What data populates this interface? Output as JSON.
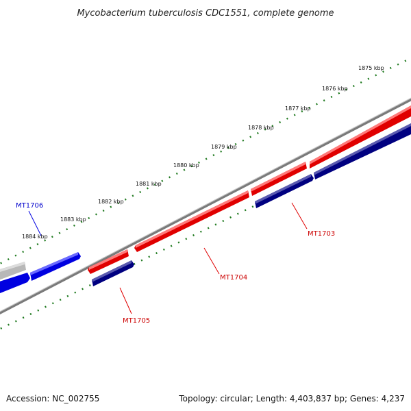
{
  "title": "Mycobacterium tuberculosis CDC1551, complete genome",
  "accession": "Accession: NC_002755",
  "summary": "Topology: circular; Length: 4,403,837 bp; Genes: 4,237",
  "colors": {
    "plus_gene": "#e00000",
    "minus_gene": "#000080",
    "highlight_gene": "#0000e0",
    "other_gene": "#b8b8b8",
    "backbone": "#808080",
    "tick": "#1f7a1f"
  },
  "ticks": [
    {
      "label": "1875 kbp"
    },
    {
      "label": "1876 kbp"
    },
    {
      "label": "1877 kbp"
    },
    {
      "label": "1878 kbp"
    },
    {
      "label": "1879 kbp"
    },
    {
      "label": "1880 kbp"
    },
    {
      "label": "1881 kbp"
    },
    {
      "label": "1882 kbp"
    },
    {
      "label": "1883 kbp"
    },
    {
      "label": "1884 kbp"
    }
  ],
  "genes": [
    {
      "name": "MT1703"
    },
    {
      "name": "MT1704"
    },
    {
      "name": "MT1705"
    },
    {
      "name": "MT1706"
    }
  ]
}
